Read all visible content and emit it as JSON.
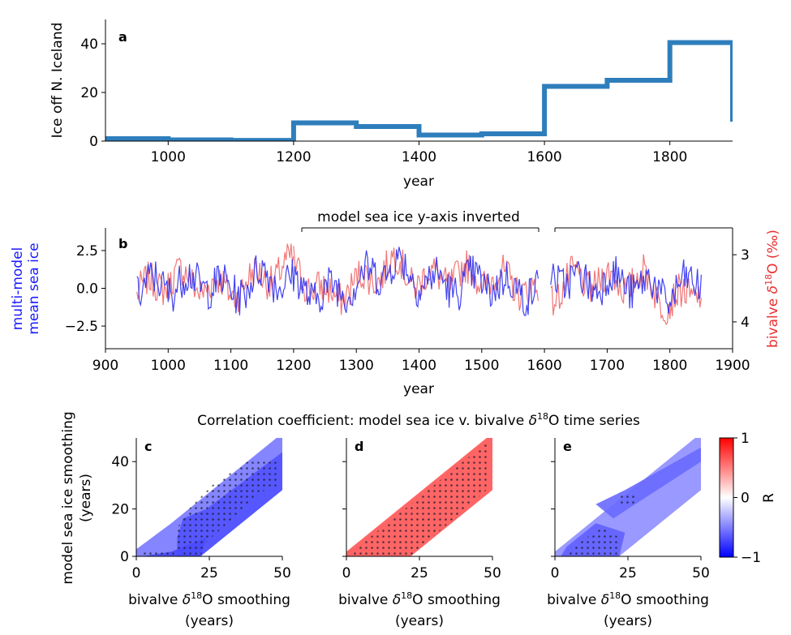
{
  "colors": {
    "step": "#2e7ebc",
    "model_line": "#2f2ff0",
    "bivalve_line": "#f07070",
    "model_axis": "#1a1aff",
    "bivalve_axis": "#e83030",
    "corr_neg": "#7a7aee",
    "corr_pos": "#ee5a5a"
  },
  "chart_data": [
    {
      "type": "line",
      "panel": "a",
      "xlabel": "year",
      "ylabel": "Ice off N. Iceland",
      "xlim": [
        900,
        1900
      ],
      "ylim": [
        0,
        50
      ],
      "xticks": [
        "1000",
        "1200",
        "1400",
        "1600",
        "1800"
      ],
      "yticks": [
        "0",
        "20",
        "40"
      ],
      "series": [
        {
          "style": "step",
          "x": [
            900,
            1000,
            1100,
            1200,
            1300,
            1400,
            1500,
            1600,
            1700,
            1800,
            1900
          ],
          "values": [
            1,
            0.5,
            0.3,
            7.5,
            6,
            2.5,
            3,
            22.5,
            25,
            40.5,
            8
          ]
        }
      ]
    },
    {
      "type": "line",
      "panel": "b",
      "title": "model sea ice y-axis inverted",
      "xlabel": "year",
      "ylabel": "multi-model\nmean sea ice",
      "y2label": "bivalve δ18O (‰)",
      "xlim": [
        900,
        1900
      ],
      "ylim": [
        -4,
        4
      ],
      "y2lim": [
        4.4,
        2.6
      ],
      "xticks": [
        "900",
        "1000",
        "1100",
        "1200",
        "1300",
        "1400",
        "1500",
        "1600",
        "1700",
        "1800",
        "1900"
      ],
      "yticks": [
        "2.5",
        "0.0",
        "−2.5"
      ],
      "y2ticks": [
        "3",
        "4"
      ],
      "segments": [
        [
          950,
          1200
        ],
        [
          1200,
          1590
        ],
        [
          1610,
          1850
        ]
      ],
      "series": [
        {
          "color_key": "model_line",
          "start": 950,
          "end": 1850,
          "points": [
            [
              950,
              0.1
            ],
            [
              1010,
              0.3
            ],
            [
              1060,
              0.5
            ],
            [
              1100,
              -0.3
            ],
            [
              1160,
              1.0
            ],
            [
              1200,
              0.2
            ],
            [
              1250,
              -0.4
            ],
            [
              1300,
              0.4
            ],
            [
              1360,
              1.6
            ],
            [
              1400,
              0.6
            ],
            [
              1460,
              0.2
            ],
            [
              1500,
              0.5
            ],
            [
              1550,
              0.0
            ],
            [
              1590,
              -0.1
            ],
            [
              1610,
              1.2
            ],
            [
              1650,
              0.3
            ],
            [
              1700,
              0.5
            ],
            [
              1760,
              0.2
            ],
            [
              1800,
              -0.4
            ],
            [
              1850,
              0.6
            ]
          ]
        },
        {
          "color_key": "bivalve_line",
          "start": 950,
          "end": 1850,
          "points": [
            [
              950,
              -0.3
            ],
            [
              1010,
              0.8
            ],
            [
              1060,
              0.2
            ],
            [
              1100,
              -0.1
            ],
            [
              1160,
              0.9
            ],
            [
              1200,
              1.5
            ],
            [
              1250,
              -0.6
            ],
            [
              1300,
              0.2
            ],
            [
              1360,
              1.7
            ],
            [
              1400,
              0.5
            ],
            [
              1460,
              0.9
            ],
            [
              1500,
              0.8
            ],
            [
              1550,
              0.4
            ],
            [
              1590,
              -0.3
            ],
            [
              1610,
              -0.4
            ],
            [
              1650,
              0.6
            ],
            [
              1700,
              0.4
            ],
            [
              1760,
              0.6
            ],
            [
              1800,
              -1.1
            ],
            [
              1850,
              0.1
            ]
          ]
        }
      ]
    },
    {
      "type": "heatmap",
      "title": "Correlation coefficient: model sea ice v. bivalve δ18O time series",
      "xlabel": "bivalve δ18O smoothing\n(years)",
      "ylabel": "model sea ice smoothing\n(years)",
      "xlim": [
        0,
        50
      ],
      "ylim": [
        0,
        50
      ],
      "xticks": [
        "0",
        "25",
        "50"
      ],
      "yticks": [
        "0",
        "20",
        "40"
      ],
      "colorbar": {
        "label": "R",
        "min": -1,
        "max": 1,
        "ticks": [
          "1",
          "0",
          "−1"
        ]
      },
      "panels": [
        {
          "label": "c",
          "mean_r": -0.45,
          "regions": [
            {
              "polygon": [
                [
                  0,
                  0
                ],
                [
                  22,
                  0
                ],
                [
                  50,
                  28
                ],
                [
                  50,
                  50
                ],
                [
                  48,
                  50
                ],
                [
                  12,
                  14
                ],
                [
                  0,
                  3
                ]
              ],
              "r": -0.35
            },
            {
              "polygon": [
                [
                  14,
                  0
                ],
                [
                  22,
                  0
                ],
                [
                  50,
                  28
                ],
                [
                  50,
                  44
                ],
                [
                  24,
                  20
                ],
                [
                  16,
                  16
                ],
                [
                  14,
                  8
                ]
              ],
              "r": -0.55
            },
            {
              "polygon": [
                [
                  2,
                  0
                ],
                [
                  22,
                  0
                ],
                [
                  24,
                  8
                ],
                [
                  12,
                  2
                ]
              ],
              "r": -0.6
            }
          ],
          "significance": [
            {
              "polygon": [
                [
                  16,
                  0
                ],
                [
                  22,
                  0
                ],
                [
                  24,
                  6
                ],
                [
                  44,
                  28
                ],
                [
                  48,
                  28
                ],
                [
                  48,
                  40
                ],
                [
                  38,
                  40
                ],
                [
                  26,
                  30
                ],
                [
                  18,
                  20
                ],
                [
                  14,
                  12
                ],
                [
                  14,
                  4
                ]
              ]
            },
            {
              "polygon": [
                [
                  2,
                  0
                ],
                [
                  14,
                  0
                ],
                [
                  14,
                  2
                ],
                [
                  2,
                  2
                ]
              ]
            }
          ]
        },
        {
          "label": "d",
          "mean_r": 0.6,
          "regions": [
            {
              "polygon": [
                [
                  0,
                  0
                ],
                [
                  22,
                  0
                ],
                [
                  50,
                  28
                ],
                [
                  50,
                  50
                ],
                [
                  48,
                  50
                ],
                [
                  0,
                  2
                ]
              ],
              "r": 0.6
            }
          ],
          "significance": [
            {
              "polygon": [
                [
                  2,
                  0
                ],
                [
                  22,
                  0
                ],
                [
                  48,
                  28
                ],
                [
                  48,
                  48
                ],
                [
                  2,
                  2
                ]
              ]
            }
          ]
        },
        {
          "label": "e",
          "mean_r": -0.3,
          "regions": [
            {
              "polygon": [
                [
                  0,
                  0
                ],
                [
                  22,
                  0
                ],
                [
                  50,
                  28
                ],
                [
                  50,
                  50
                ],
                [
                  48,
                  50
                ],
                [
                  0,
                  2
                ]
              ],
              "r": -0.2
            },
            {
              "polygon": [
                [
                  14,
                  22
                ],
                [
                  24,
                  28
                ],
                [
                  50,
                  46
                ],
                [
                  50,
                  40
                ],
                [
                  30,
                  24
                ],
                [
                  20,
                  16
                ]
              ],
              "r": -0.4
            },
            {
              "polygon": [
                [
                  2,
                  0
                ],
                [
                  22,
                  0
                ],
                [
                  24,
                  10
                ],
                [
                  14,
                  14
                ],
                [
                  4,
                  4
                ]
              ],
              "r": -0.45
            }
          ],
          "significance": [
            {
              "polygon": [
                [
                  4,
                  0
                ],
                [
                  22,
                  0
                ],
                [
                  22,
                  8
                ],
                [
                  16,
                  12
                ],
                [
                  6,
                  4
                ]
              ]
            },
            {
              "polygon": [
                [
                  22,
                  22
                ],
                [
                  28,
                  22
                ],
                [
                  28,
                  26
                ],
                [
                  22,
                  26
                ]
              ]
            }
          ]
        }
      ]
    }
  ]
}
